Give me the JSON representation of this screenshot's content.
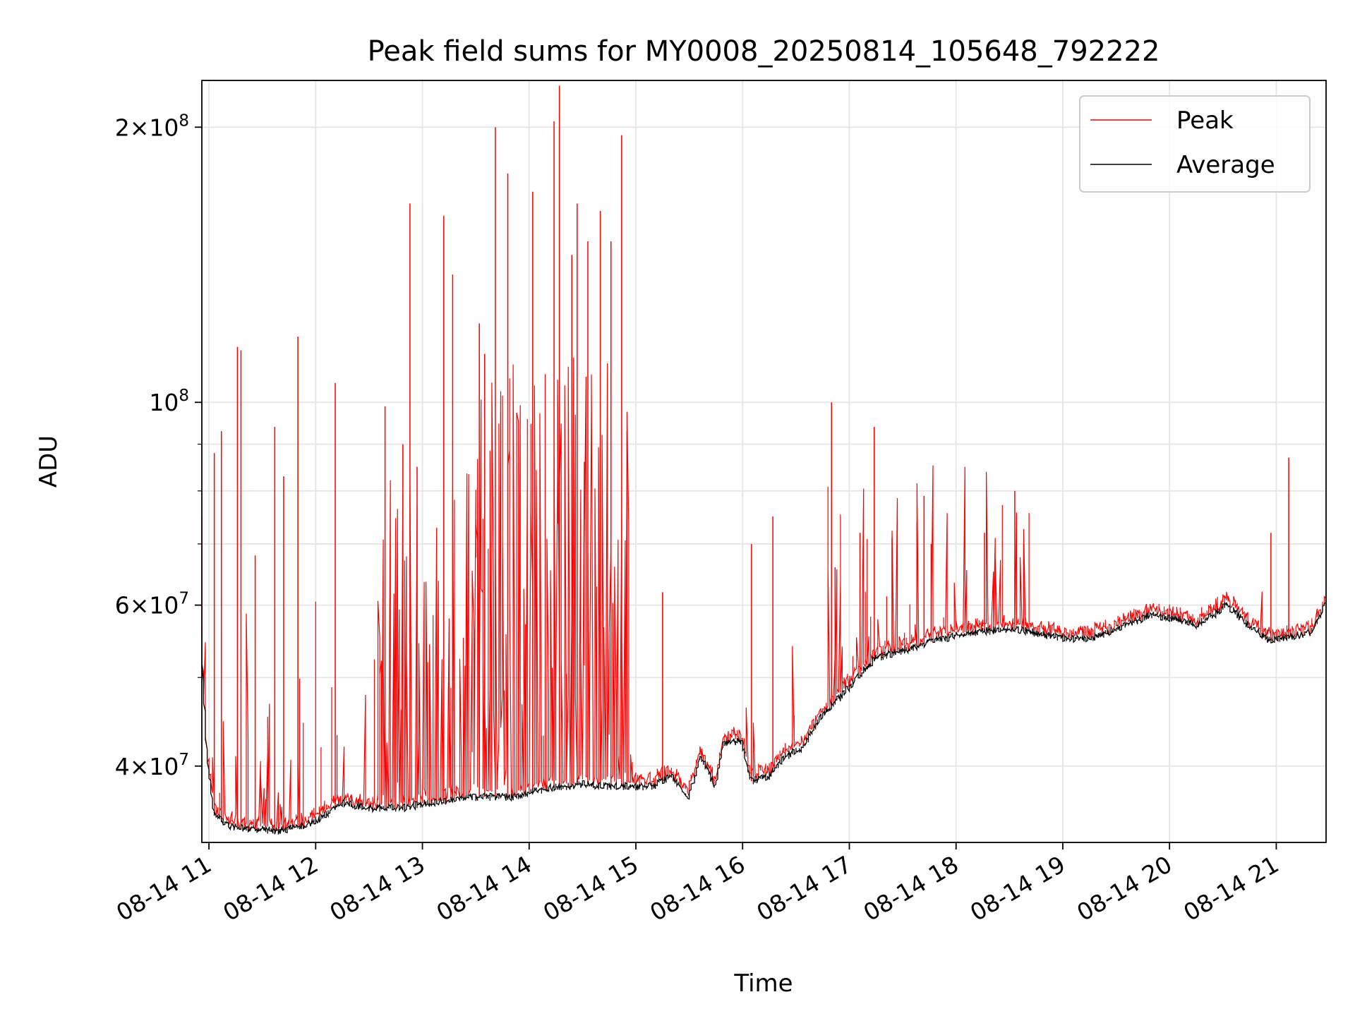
{
  "chart_data": {
    "type": "line",
    "title": "Peak field sums for MY0008_20250814_105648_792222",
    "xlabel": "Time",
    "ylabel": "ADU",
    "yscale": "log",
    "xlim": [
      "2025-08-14T10:56",
      "2025-08-14T21:28"
    ],
    "ylim": [
      33000000,
      225000000
    ],
    "grid": true,
    "legend_position": "top-right",
    "x_ticks": [
      {
        "t": "2025-08-14T11:00",
        "label": "08-14 11"
      },
      {
        "t": "2025-08-14T12:00",
        "label": "08-14 12"
      },
      {
        "t": "2025-08-14T13:00",
        "label": "08-14 13"
      },
      {
        "t": "2025-08-14T14:00",
        "label": "08-14 14"
      },
      {
        "t": "2025-08-14T15:00",
        "label": "08-14 15"
      },
      {
        "t": "2025-08-14T16:00",
        "label": "08-14 16"
      },
      {
        "t": "2025-08-14T17:00",
        "label": "08-14 17"
      },
      {
        "t": "2025-08-14T18:00",
        "label": "08-14 18"
      },
      {
        "t": "2025-08-14T19:00",
        "label": "08-14 19"
      },
      {
        "t": "2025-08-14T20:00",
        "label": "08-14 20"
      },
      {
        "t": "2025-08-14T21:00",
        "label": "08-14 21"
      }
    ],
    "y_ticks_major": [
      {
        "v": 40000000,
        "mant": "4",
        "exp": "7"
      },
      {
        "v": 60000000,
        "mant": "6",
        "exp": "7"
      },
      {
        "v": 100000000,
        "mant": "",
        "exp": "8"
      },
      {
        "v": 200000000,
        "mant": "2",
        "exp": "8"
      }
    ],
    "y_gridlines": [
      40000000,
      50000000,
      60000000,
      70000000,
      80000000,
      90000000,
      100000000,
      200000000
    ],
    "series": [
      {
        "name": "Peak",
        "color": "#ff0000",
        "spikes": [
          [
            "2025-08-14T10:56",
            75000000
          ],
          [
            "2025-08-14T11:03",
            88000000
          ],
          [
            "2025-08-14T11:07",
            93000000
          ],
          [
            "2025-08-14T11:16",
            115000000
          ],
          [
            "2025-08-14T11:18",
            114000000
          ],
          [
            "2025-08-14T11:26",
            68000000
          ],
          [
            "2025-08-14T11:37",
            94000000
          ],
          [
            "2025-08-14T11:42",
            83000000
          ],
          [
            "2025-08-14T11:50",
            118000000
          ],
          [
            "2025-08-14T12:11",
            105000000
          ],
          [
            "2025-08-14T12:39",
            99000000
          ],
          [
            "2025-08-14T12:49",
            90000000
          ],
          [
            "2025-08-14T12:53",
            165000000
          ],
          [
            "2025-08-14T12:57",
            85000000
          ],
          [
            "2025-08-14T13:12",
            160000000
          ],
          [
            "2025-08-14T13:17",
            138000000
          ],
          [
            "2025-08-14T13:32",
            122000000
          ],
          [
            "2025-08-14T13:35",
            113000000
          ],
          [
            "2025-08-14T13:41",
            200000000
          ],
          [
            "2025-08-14T13:48",
            178000000
          ],
          [
            "2025-08-14T14:02",
            170000000
          ],
          [
            "2025-08-14T14:14",
            203000000
          ],
          [
            "2025-08-14T14:17",
            222000000
          ],
          [
            "2025-08-14T14:24",
            145000000
          ],
          [
            "2025-08-14T14:27",
            165000000
          ],
          [
            "2025-08-14T14:33",
            150000000
          ],
          [
            "2025-08-14T14:40",
            162000000
          ],
          [
            "2025-08-14T14:46",
            150000000
          ],
          [
            "2025-08-14T14:52",
            196000000
          ],
          [
            "2025-08-14T14:55",
            93000000
          ],
          [
            "2025-08-14T15:15",
            62000000
          ],
          [
            "2025-08-14T16:05",
            70000000
          ],
          [
            "2025-08-14T16:17",
            75000000
          ],
          [
            "2025-08-14T16:50",
            100000000
          ],
          [
            "2025-08-14T16:52",
            66000000
          ],
          [
            "2025-08-14T17:06",
            72000000
          ],
          [
            "2025-08-14T17:14",
            94000000
          ],
          [
            "2025-08-14T17:24",
            71000000
          ],
          [
            "2025-08-14T17:38",
            74000000
          ],
          [
            "2025-08-14T17:42",
            79000000
          ],
          [
            "2025-08-14T17:46",
            70000000
          ],
          [
            "2025-08-14T18:16",
            72000000
          ],
          [
            "2025-08-14T18:33",
            80000000
          ],
          [
            "2025-08-14T18:38",
            70000000
          ],
          [
            "2025-08-14T20:57",
            72000000
          ],
          [
            "2025-08-14T21:07",
            87000000
          ]
        ]
      },
      {
        "name": "Average",
        "color": "#000000",
        "baseline": [
          [
            "2025-08-14T10:56",
            55000000
          ],
          [
            "2025-08-14T10:59",
            42000000
          ],
          [
            "2025-08-14T11:03",
            35500000
          ],
          [
            "2025-08-14T11:10",
            34500000
          ],
          [
            "2025-08-14T11:20",
            34200000
          ],
          [
            "2025-08-14T11:40",
            34000000
          ],
          [
            "2025-08-14T11:55",
            34500000
          ],
          [
            "2025-08-14T12:05",
            35200000
          ],
          [
            "2025-08-14T12:15",
            36500000
          ],
          [
            "2025-08-14T12:30",
            36000000
          ],
          [
            "2025-08-14T12:50",
            36000000
          ],
          [
            "2025-08-14T13:05",
            36500000
          ],
          [
            "2025-08-14T13:30",
            37000000
          ],
          [
            "2025-08-14T13:50",
            37000000
          ],
          [
            "2025-08-14T14:10",
            37800000
          ],
          [
            "2025-08-14T14:30",
            38200000
          ],
          [
            "2025-08-14T14:50",
            38000000
          ],
          [
            "2025-08-14T15:10",
            38000000
          ],
          [
            "2025-08-14T15:20",
            39000000
          ],
          [
            "2025-08-14T15:30",
            37000000
          ],
          [
            "2025-08-14T15:37",
            41000000
          ],
          [
            "2025-08-14T15:45",
            38000000
          ],
          [
            "2025-08-14T15:50",
            42500000
          ],
          [
            "2025-08-14T16:00",
            42500000
          ],
          [
            "2025-08-14T16:05",
            38500000
          ],
          [
            "2025-08-14T16:15",
            39000000
          ],
          [
            "2025-08-14T16:25",
            41000000
          ],
          [
            "2025-08-14T16:35",
            42000000
          ],
          [
            "2025-08-14T16:45",
            45500000
          ],
          [
            "2025-08-14T16:55",
            47500000
          ],
          [
            "2025-08-14T17:05",
            50000000
          ],
          [
            "2025-08-14T17:15",
            52500000
          ],
          [
            "2025-08-14T17:30",
            53500000
          ],
          [
            "2025-08-14T17:50",
            55000000
          ],
          [
            "2025-08-14T18:10",
            56000000
          ],
          [
            "2025-08-14T18:30",
            56500000
          ],
          [
            "2025-08-14T18:40",
            56200000
          ],
          [
            "2025-08-14T19:00",
            55200000
          ],
          [
            "2025-08-14T19:15",
            55000000
          ],
          [
            "2025-08-14T19:30",
            56500000
          ],
          [
            "2025-08-14T19:50",
            58500000
          ],
          [
            "2025-08-14T20:05",
            58000000
          ],
          [
            "2025-08-14T20:15",
            57000000
          ],
          [
            "2025-08-14T20:25",
            58500000
          ],
          [
            "2025-08-14T20:33",
            60000000
          ],
          [
            "2025-08-14T20:45",
            57000000
          ],
          [
            "2025-08-14T20:55",
            55000000
          ],
          [
            "2025-08-14T21:05",
            55200000
          ],
          [
            "2025-08-14T21:20",
            56000000
          ],
          [
            "2025-08-14T21:28",
            60000000
          ]
        ]
      }
    ]
  }
}
